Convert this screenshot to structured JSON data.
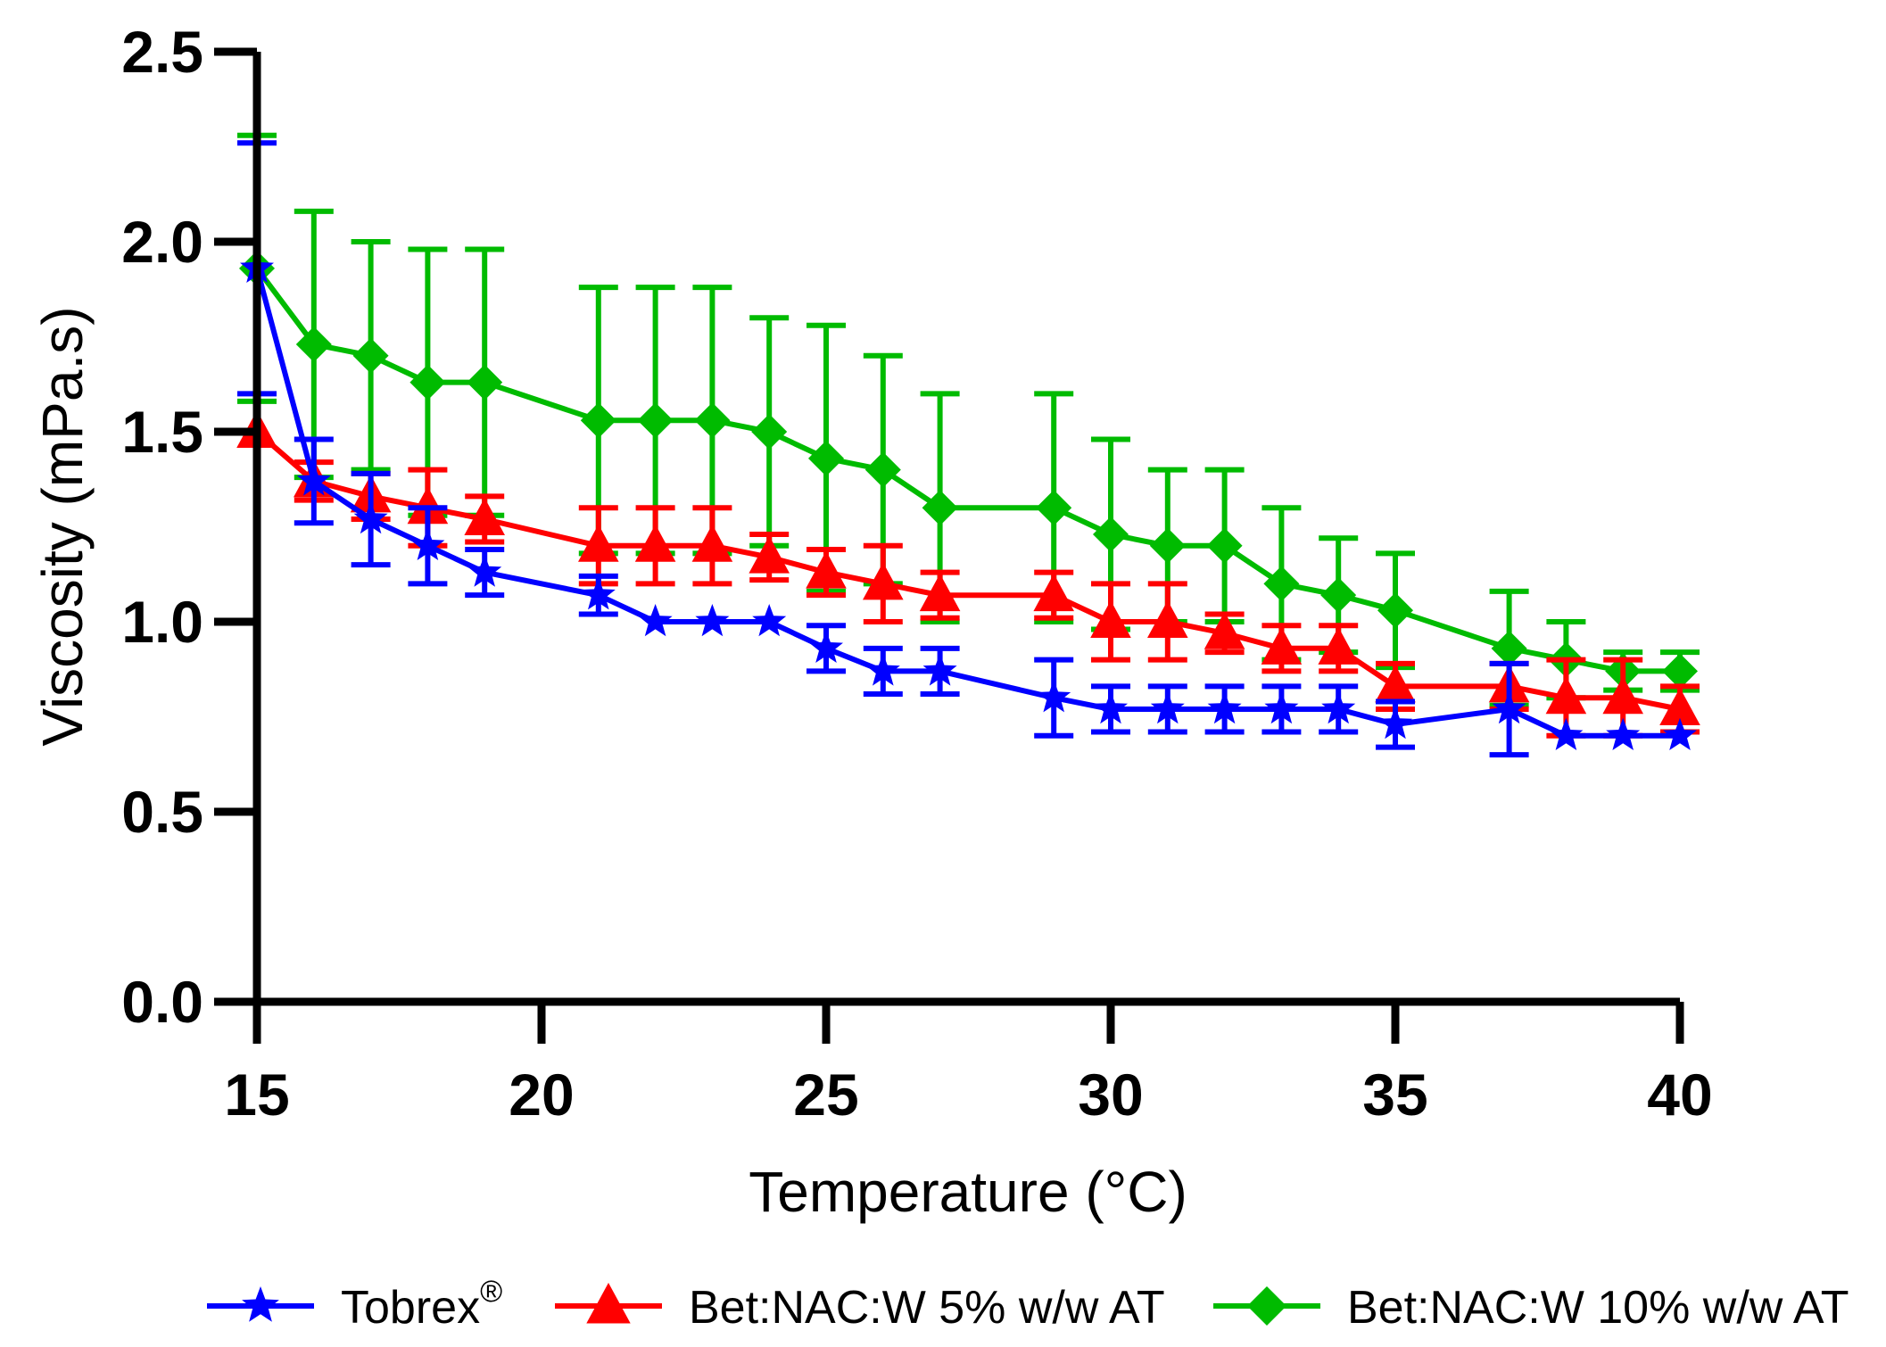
{
  "chart_data": {
    "type": "line",
    "xlabel": "Temperature (°C)",
    "ylabel": "Viscosity (mPa.s)",
    "xlim": [
      15,
      40
    ],
    "ylim": [
      0.0,
      2.5
    ],
    "x_ticks": [
      "15",
      "20",
      "25",
      "30",
      "35",
      "40"
    ],
    "y_ticks": [
      "0.0",
      "0.5",
      "1.0",
      "1.5",
      "2.0",
      "2.5"
    ],
    "grid": false,
    "legend_position": "bottom",
    "series": [
      {
        "name": "Tobrex",
        "name_superscript": "®",
        "color": "#0000ff",
        "marker": "star",
        "x": [
          15,
          16,
          17,
          18,
          19,
          21,
          22,
          23,
          24,
          25,
          26,
          27,
          29,
          30,
          31,
          32,
          33,
          34,
          35,
          37,
          38,
          39,
          40
        ],
        "y": [
          1.93,
          1.37,
          1.27,
          1.2,
          1.13,
          1.07,
          1.0,
          1.0,
          1.0,
          0.93,
          0.87,
          0.87,
          0.8,
          0.77,
          0.77,
          0.77,
          0.77,
          0.77,
          0.73,
          0.77,
          0.7,
          0.7,
          0.7
        ],
        "err": [
          0.33,
          0.11,
          0.12,
          0.1,
          0.06,
          0.05,
          0.0,
          0.0,
          0.0,
          0.06,
          0.06,
          0.06,
          0.1,
          0.06,
          0.06,
          0.06,
          0.06,
          0.06,
          0.06,
          0.12,
          0.0,
          0.0,
          0.0
        ]
      },
      {
        "name": "Bet:NAC:W 5% w/w AT",
        "color": "#ff0000",
        "marker": "triangle",
        "x": [
          15,
          16,
          17,
          18,
          19,
          21,
          22,
          23,
          24,
          25,
          26,
          27,
          29,
          30,
          31,
          32,
          33,
          34,
          35,
          37,
          38,
          39,
          40
        ],
        "y": [
          1.5,
          1.37,
          1.33,
          1.3,
          1.27,
          1.2,
          1.2,
          1.2,
          1.17,
          1.13,
          1.1,
          1.07,
          1.07,
          1.0,
          1.0,
          0.97,
          0.93,
          0.93,
          0.83,
          0.83,
          0.8,
          0.8,
          0.77
        ],
        "err": [
          0.0,
          0.05,
          0.06,
          0.1,
          0.06,
          0.1,
          0.1,
          0.1,
          0.06,
          0.06,
          0.1,
          0.06,
          0.06,
          0.1,
          0.1,
          0.05,
          0.06,
          0.06,
          0.06,
          0.06,
          0.1,
          0.1,
          0.06
        ]
      },
      {
        "name": "Bet:NAC:W 10% w/w AT",
        "color": "#00bb00",
        "marker": "diamond",
        "x": [
          15,
          16,
          17,
          18,
          19,
          21,
          22,
          23,
          24,
          25,
          26,
          27,
          29,
          30,
          31,
          32,
          33,
          34,
          35,
          37,
          38,
          39,
          40
        ],
        "y": [
          1.93,
          1.73,
          1.7,
          1.63,
          1.63,
          1.53,
          1.53,
          1.53,
          1.5,
          1.43,
          1.4,
          1.3,
          1.3,
          1.23,
          1.2,
          1.2,
          1.1,
          1.07,
          1.03,
          0.93,
          0.9,
          0.87,
          0.87
        ],
        "err": [
          0.35,
          0.35,
          0.3,
          0.35,
          0.35,
          0.35,
          0.35,
          0.35,
          0.3,
          0.35,
          0.3,
          0.3,
          0.3,
          0.25,
          0.2,
          0.2,
          0.2,
          0.15,
          0.15,
          0.15,
          0.1,
          0.05,
          0.05
        ]
      }
    ]
  }
}
